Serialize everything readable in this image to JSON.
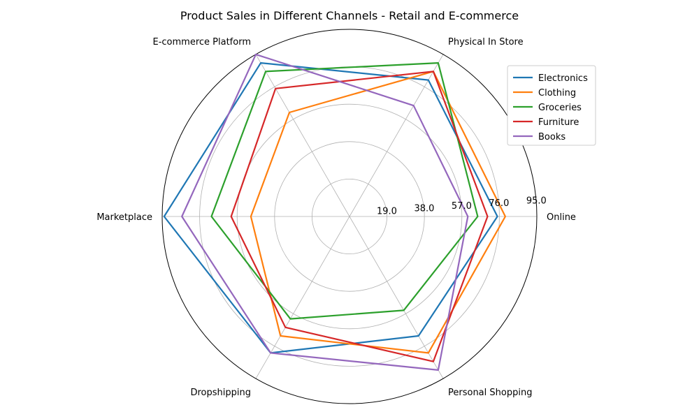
{
  "chart_data": {
    "type": "radar",
    "title": "Product Sales in Different Channels - Retail and E-commerce",
    "categories": [
      "Online",
      "Physical In Store",
      "E-commerce Platform",
      "Marketplace",
      "Dropshipping",
      "Personal Shopping"
    ],
    "radial_ticks": [
      "19.0",
      "38.0",
      "57.0",
      "76.0",
      "95.0"
    ],
    "radial_tick_values": [
      19,
      38,
      57,
      76,
      95
    ],
    "rmax": 95,
    "grid": true,
    "legend_position": "top-right",
    "series": [
      {
        "name": "Electronics",
        "color": "#1f77b4",
        "values": [
          75,
          80,
          90,
          94,
          80,
          70
        ]
      },
      {
        "name": "Clothing",
        "color": "#ff7f0e",
        "values": [
          79,
          85,
          61,
          50,
          70,
          80
        ]
      },
      {
        "name": "Groceries",
        "color": "#2ca02c",
        "values": [
          65,
          90,
          85,
          70,
          60,
          55
        ]
      },
      {
        "name": "Furniture",
        "color": "#d62728",
        "values": [
          70,
          85,
          75,
          60,
          65,
          85
        ]
      },
      {
        "name": "Books",
        "color": "#9467bd",
        "values": [
          60,
          65,
          95,
          85,
          80,
          90
        ]
      }
    ]
  }
}
